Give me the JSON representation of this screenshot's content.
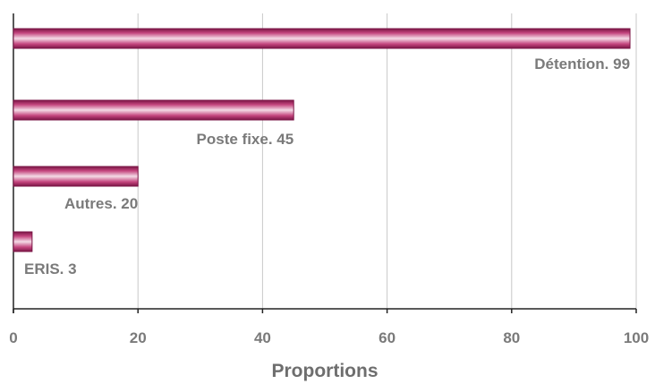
{
  "chart_data": {
    "type": "bar",
    "orientation": "horizontal",
    "categories": [
      "Détention",
      "Poste fixe",
      "Autres",
      "ERIS"
    ],
    "values": [
      99,
      45,
      20,
      3
    ],
    "data_labels": [
      "Détention. 99",
      "Poste fixe. 45",
      "Autres. 20",
      "ERIS. 3"
    ],
    "xlabel": "Proportions",
    "ylabel": "",
    "xlim": [
      0,
      100
    ],
    "x_ticks": [
      "0",
      "20",
      "40",
      "60",
      "80",
      "100"
    ],
    "grid": "vertical",
    "legend": "none",
    "colors": {
      "bar_light": "#f4dbe6",
      "bar_mid": "#c4457e",
      "bar_dark": "#7a1545",
      "grid": "#c8c8c8",
      "text": "#7a7a7a"
    }
  }
}
